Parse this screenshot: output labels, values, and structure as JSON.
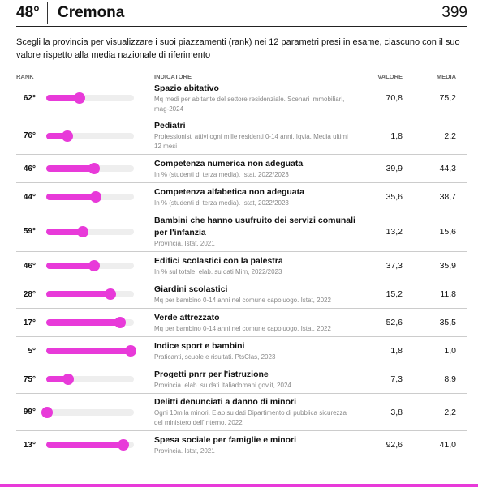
{
  "header": {
    "rank": "48°",
    "province": "Cremona",
    "score": "399"
  },
  "intro": "Scegli la provincia per visualizzare i suoi piazzamenti (rank) nei 12 parametri presi in esame, ciascuno con il suo valore rispetto alla media nazionale di riferimento",
  "columns": [
    "RANK",
    "INDICATORE",
    "VALORE",
    "MEDIA"
  ],
  "rows": [
    {
      "rank": {
        "value": 62,
        "label": "62°"
      },
      "title": "Spazio abitativo",
      "desc": "Mq medi per abitante del settore residenziale. Scenari Immobiliari, mag-2024",
      "valore": "70,8",
      "media": "75,2"
    },
    {
      "rank": {
        "value": 76,
        "label": "76°"
      },
      "title": "Pediatri",
      "desc": "Professionisti attivi ogni mille residenti 0-14 anni. Iqvia, Media ultimi 12 mesi",
      "valore": "1,8",
      "media": "2,2"
    },
    {
      "rank": {
        "value": 46,
        "label": "46°"
      },
      "title": "Competenza numerica non adeguata",
      "desc": "In % (studenti di terza media). Istat, 2022/2023",
      "valore": "39,9",
      "media": "44,3"
    },
    {
      "rank": {
        "value": 44,
        "label": "44°"
      },
      "title": "Competenza alfabetica non adeguata",
      "desc": "In % (studenti di terza media). Istat, 2022/2023",
      "valore": "35,6",
      "media": "38,7"
    },
    {
      "rank": {
        "value": 59,
        "label": "59°"
      },
      "title": "Bambini che hanno usufruito dei servizi comunali per l'infanzia",
      "desc": "Provincia. Istat, 2021",
      "valore": "13,2",
      "media": "15,6"
    },
    {
      "rank": {
        "value": 46,
        "label": "46°"
      },
      "title": "Edifici scolastici con la palestra",
      "desc": "In % sul totale. elab. su dati Mim, 2022/2023",
      "valore": "37,3",
      "media": "35,9"
    },
    {
      "rank": {
        "value": 28,
        "label": "28°"
      },
      "title": "Giardini scolastici",
      "desc": "Mq per bambino 0-14 anni nel comune capoluogo. Istat, 2022",
      "valore": "15,2",
      "media": "11,8"
    },
    {
      "rank": {
        "value": 17,
        "label": "17°"
      },
      "title": "Verde attrezzato",
      "desc": "Mq per bambino 0-14 anni nel comune capoluogo. Istat, 2022",
      "valore": "52,6",
      "media": "35,5"
    },
    {
      "rank": {
        "value": 5,
        "label": "5°"
      },
      "title": "Indice sport e bambini",
      "desc": "Praticanti, scuole e risultati. PtsClas, 2023",
      "valore": "1,8",
      "media": "1,0"
    },
    {
      "rank": {
        "value": 75,
        "label": "75°"
      },
      "title": "Progetti pnrr per l'istruzione",
      "desc": "Provincia. elab. su dati Italiadomani.gov.it, 2024",
      "valore": "7,3",
      "media": "8,9"
    },
    {
      "rank": {
        "value": 99,
        "label": "99°"
      },
      "title": "Delitti denunciati a danno di minori",
      "desc": "Ogni 10mila minori. Elab su dati Dipartimento di pubblica sicurezza del ministero dell'Interno, 2022",
      "valore": "3,8",
      "media": "2,2"
    },
    {
      "rank": {
        "value": 13,
        "label": "13°"
      },
      "title": "Spesa sociale per famiglie e minori",
      "desc": "Provincia. Istat, 2021",
      "valore": "92,6",
      "media": "41,0"
    }
  ]
}
